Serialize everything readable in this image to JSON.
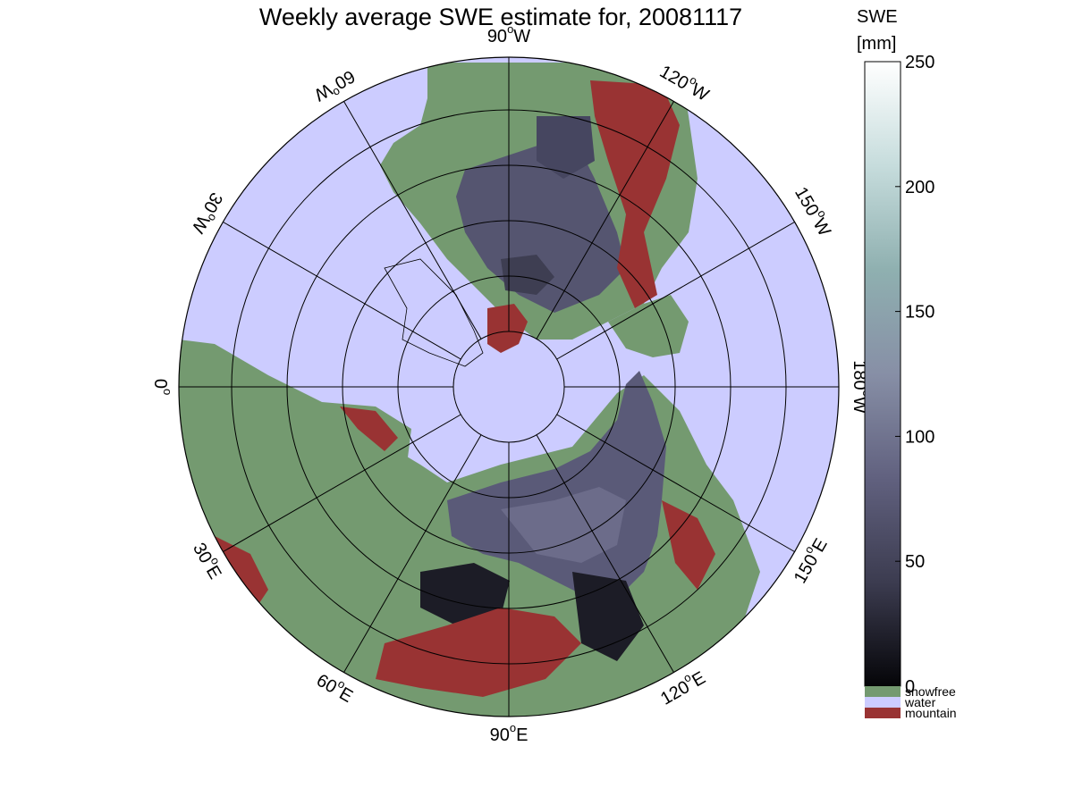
{
  "title": "Weekly average SWE estimate for, 20081117",
  "colorbar": {
    "title_line1": "SWE",
    "title_line2": "[mm]",
    "ticks": [
      {
        "value": 250,
        "label": "250"
      },
      {
        "value": 200,
        "label": "200"
      },
      {
        "value": 150,
        "label": "150"
      },
      {
        "value": 100,
        "label": "100"
      },
      {
        "value": 50,
        "label": "50"
      },
      {
        "value": 0,
        "label": "0"
      }
    ],
    "min": 0,
    "max": 250,
    "categories": [
      {
        "label": "snowfree",
        "color": "#749a70"
      },
      {
        "label": "water",
        "color": "#ccccff"
      },
      {
        "label": "mountain",
        "color": "#993333"
      }
    ],
    "gradient": [
      "#050508",
      "#3c3c50",
      "#61617f",
      "#878fa6",
      "#8fb0b0",
      "#c6dcdc",
      "#ffffff"
    ]
  },
  "map": {
    "projection": "north-polar stereographic",
    "colors": {
      "water": "#ccccff",
      "land": "#749a70",
      "mountain": "#993333",
      "snow_deep": "#555570",
      "snow_shallow": "#1a1a22"
    },
    "longitude_labels": [
      {
        "value": "90",
        "unit": "W"
      },
      {
        "value": "120",
        "unit": "W"
      },
      {
        "value": "150",
        "unit": "W"
      },
      {
        "value": "180",
        "unit": "W"
      },
      {
        "value": "150",
        "unit": "E"
      },
      {
        "value": "120",
        "unit": "E"
      },
      {
        "value": "90",
        "unit": "E"
      },
      {
        "value": "60",
        "unit": "E"
      },
      {
        "value": "30",
        "unit": "E"
      },
      {
        "value": "0",
        "unit": ""
      },
      {
        "value": "30",
        "unit": "W"
      },
      {
        "value": "60",
        "unit": "W"
      }
    ]
  }
}
